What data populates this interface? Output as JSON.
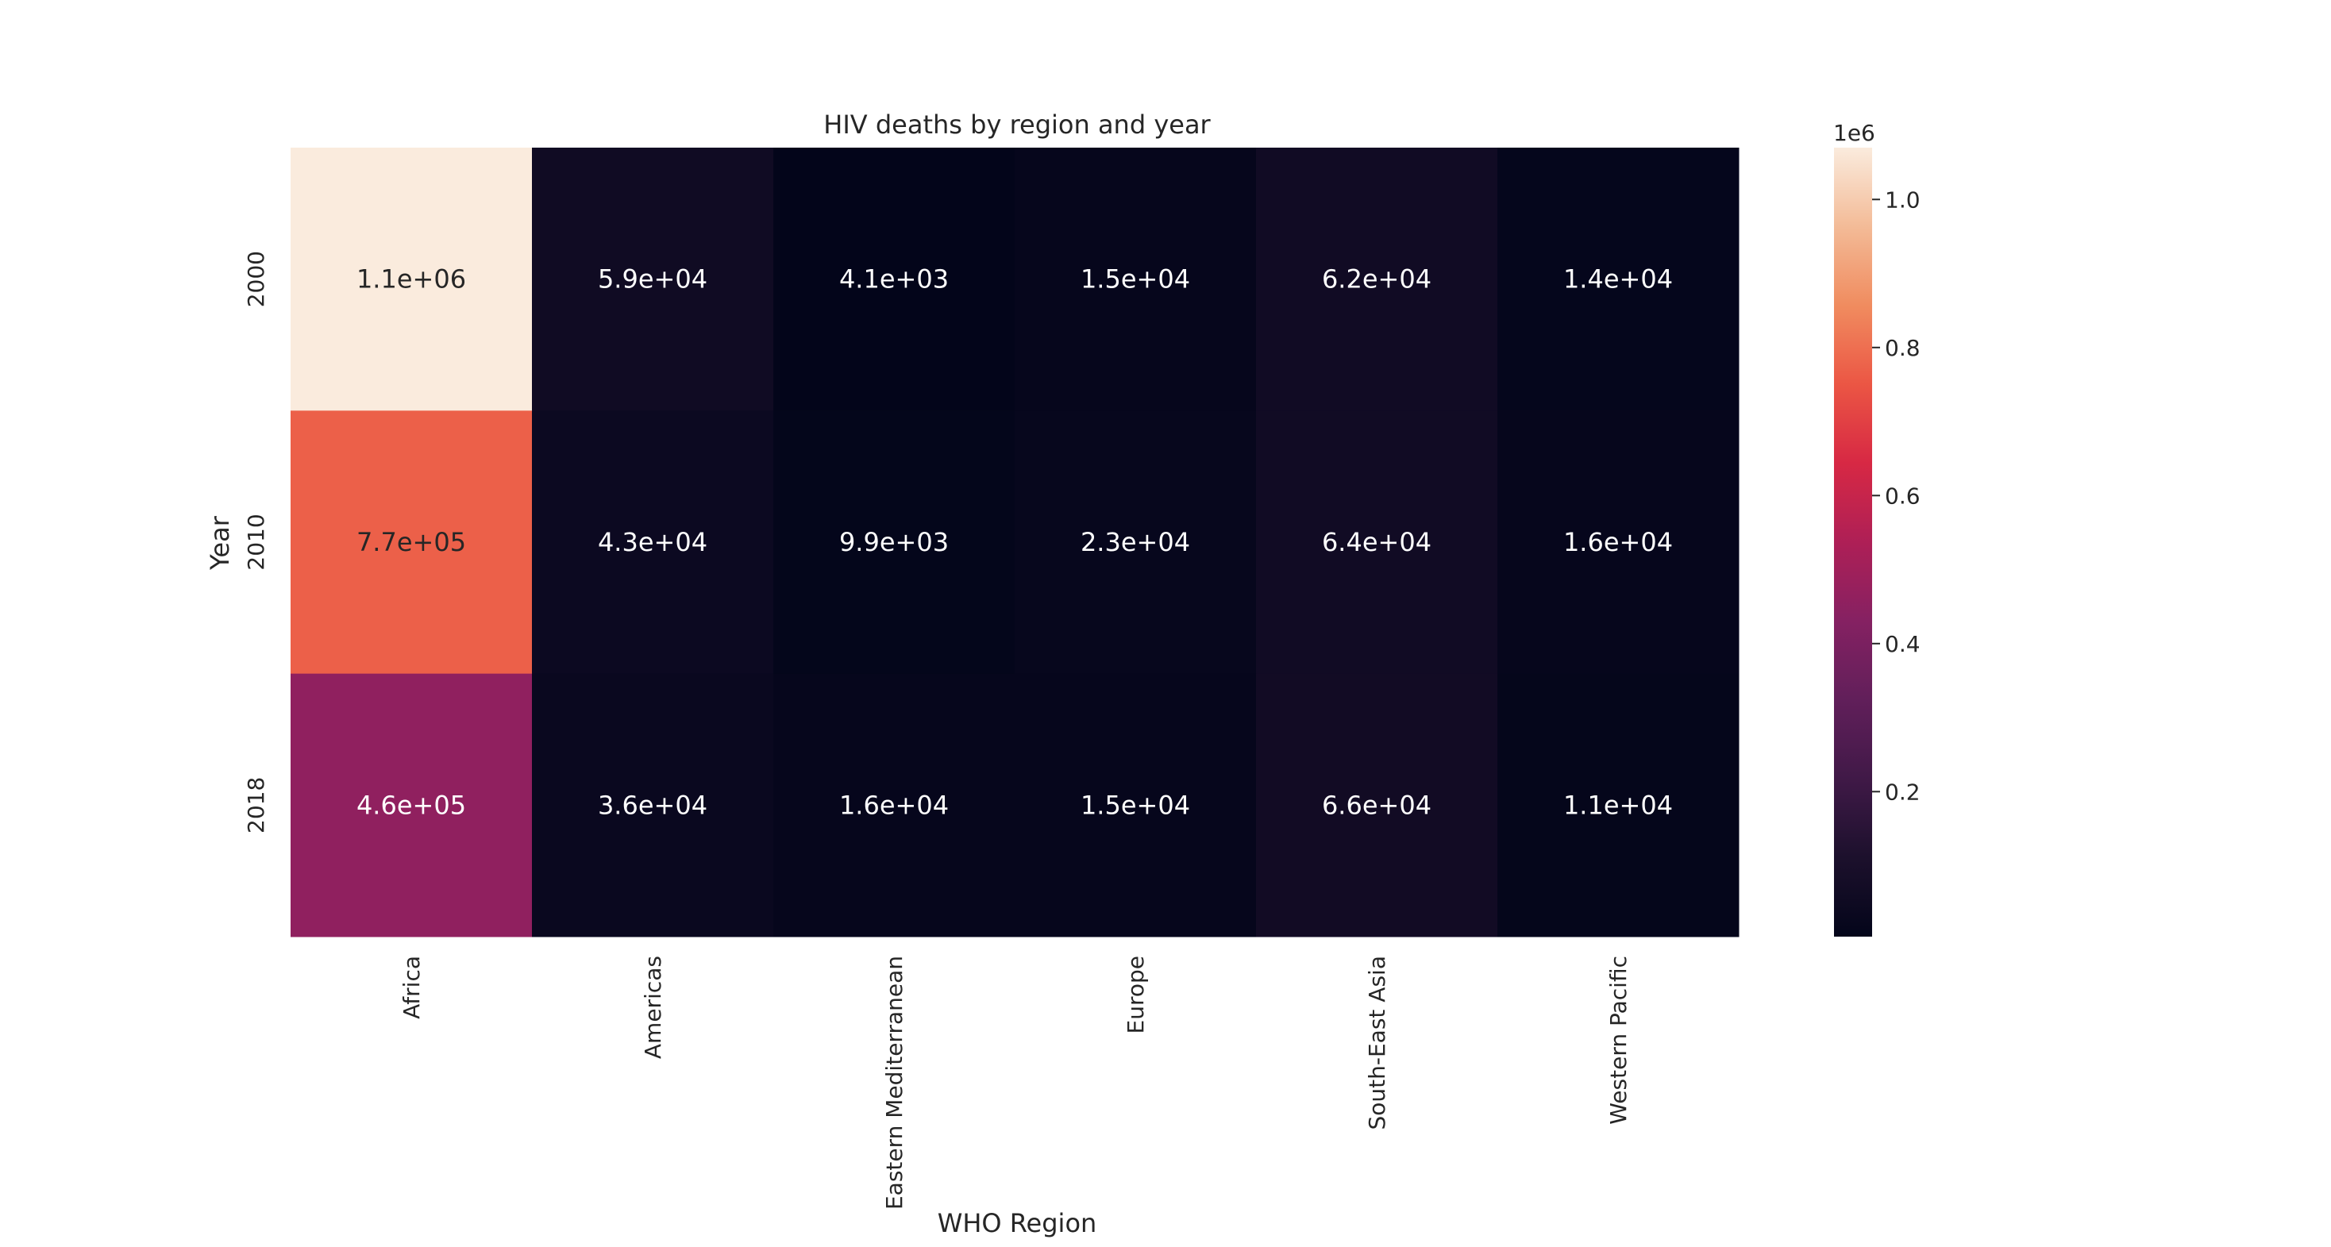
{
  "chart_data": {
    "type": "heatmap",
    "title": "HIV deaths by region and year",
    "xlabel": "WHO Region",
    "ylabel": "Year",
    "x_categories": [
      "Africa",
      "Americas",
      "Eastern Mediterranean",
      "Europe",
      "South-East Asia",
      "Western Pacific"
    ],
    "y_categories": [
      "2000",
      "2010",
      "2018"
    ],
    "values": [
      [
        1100000,
        59000,
        4100,
        15000,
        62000,
        14000
      ],
      [
        770000,
        43000,
        9900,
        23000,
        64000,
        16000
      ],
      [
        460000,
        36000,
        16000,
        15000,
        66000,
        11000
      ]
    ],
    "cell_labels": [
      [
        "1.1e+06",
        "5.9e+04",
        "4.1e+03",
        "1.5e+04",
        "6.2e+04",
        "1.4e+04"
      ],
      [
        "7.7e+05",
        "4.3e+04",
        "9.9e+03",
        "2.3e+04",
        "6.4e+04",
        "1.6e+04"
      ],
      [
        "4.6e+05",
        "3.6e+04",
        "1.6e+04",
        "1.5e+04",
        "6.6e+04",
        "1.1e+04"
      ]
    ],
    "colorbar": {
      "scale_label": "1e6",
      "range": [
        4100,
        1070000
      ],
      "ticks": [
        0.2,
        0.4,
        0.6,
        0.8,
        1.0
      ],
      "tick_labels": [
        "0.2",
        "0.4",
        "0.6",
        "0.8",
        "1.0"
      ]
    },
    "colormap": "rocket",
    "grid": false,
    "legend": "colorbar-right"
  }
}
